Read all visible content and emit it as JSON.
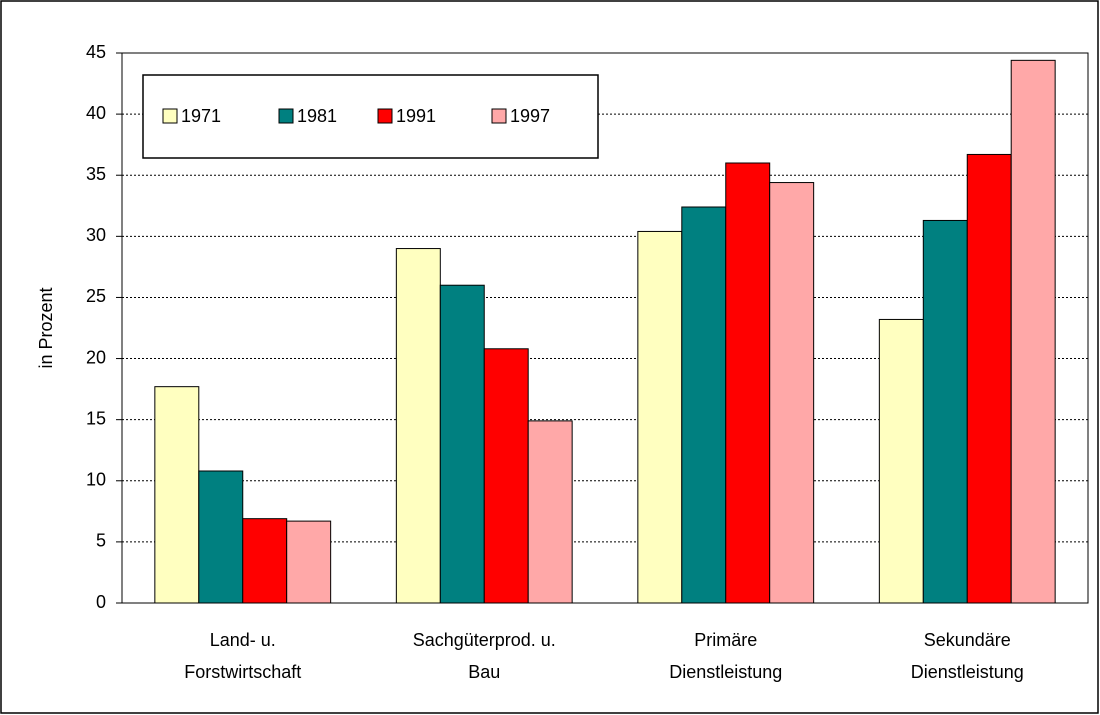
{
  "chart_data": {
    "type": "bar",
    "y_label": "in Prozent",
    "categories": [
      [
        "Land- u.",
        "Forstwirtschaft"
      ],
      [
        "Sachgüterprod. u.",
        "Bau"
      ],
      [
        "Primäre",
        "Dienstleistung"
      ],
      [
        "Sekundäre",
        "Dienstleistung"
      ]
    ],
    "series": [
      {
        "name": "1971",
        "color": "#ffffc0",
        "values": [
          17.7,
          29.0,
          30.4,
          23.2
        ]
      },
      {
        "name": "1981",
        "color": "#008080",
        "values": [
          10.8,
          26.0,
          32.4,
          31.3
        ]
      },
      {
        "name": "1991",
        "color": "#ff0000",
        "values": [
          6.9,
          20.8,
          36.0,
          36.7
        ]
      },
      {
        "name": "1997",
        "color": "#ffa8a8",
        "values": [
          6.7,
          14.9,
          34.4,
          44.4
        ]
      }
    ],
    "ylim": [
      0,
      45
    ],
    "yticks": [
      0,
      5,
      10,
      15,
      20,
      25,
      30,
      35,
      40,
      45
    ],
    "grid": true,
    "legend": "top-left"
  }
}
